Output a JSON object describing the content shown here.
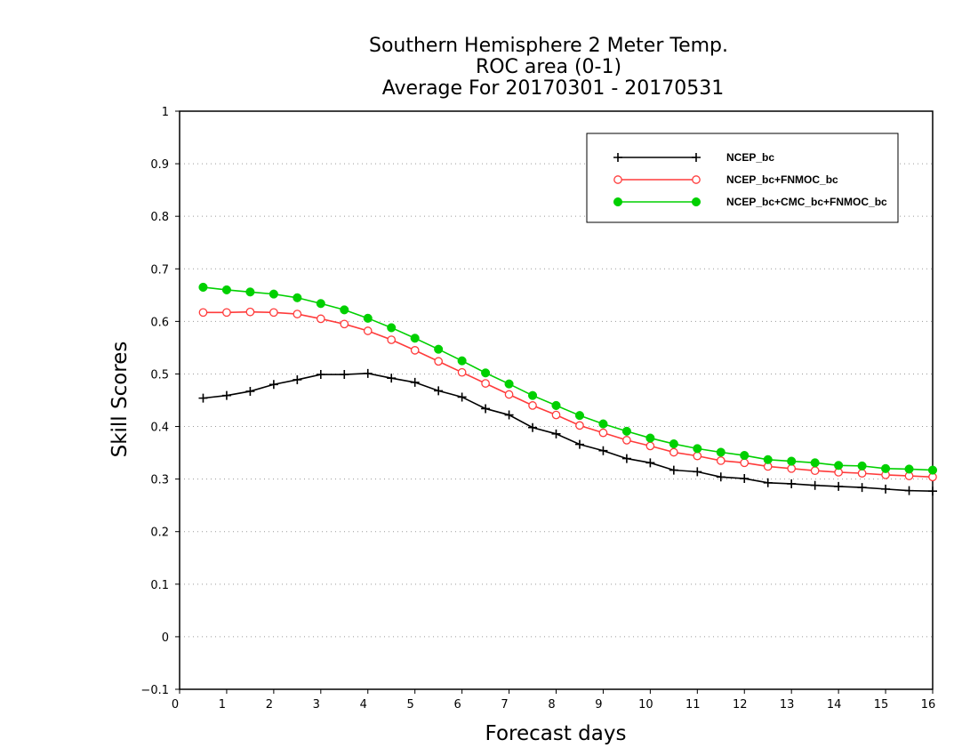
{
  "chart_data": {
    "type": "line",
    "title": [
      "Southern Hemisphere 2 Meter Temp.",
      "ROC area (0-1)",
      "Average For 20170301 - 20170531"
    ],
    "xlabel": "Forecast days",
    "ylabel": "Skill Scores",
    "xlim": [
      0,
      16
    ],
    "ylim": [
      -0.1,
      1
    ],
    "x_ticks": [
      "0",
      "1",
      "2",
      "3",
      "4",
      "5",
      "6",
      "7",
      "8",
      "9",
      "10",
      "11",
      "12",
      "13",
      "14",
      "15",
      "16"
    ],
    "y_ticks": [
      "−0.1",
      "0",
      "0.1",
      "0.2",
      "0.3",
      "0.4",
      "0.5",
      "0.6",
      "0.7",
      "0.8",
      "0.9",
      "1"
    ],
    "grid": "horizontal-dotted",
    "legend_position": "top-right",
    "x": [
      0.5,
      1,
      1.5,
      2,
      2.5,
      3,
      3.5,
      4,
      4.5,
      5,
      5.5,
      6,
      6.5,
      7,
      7.5,
      8,
      8.5,
      9,
      9.5,
      10,
      10.5,
      11,
      11.5,
      12,
      12.5,
      13,
      13.5,
      14,
      14.5,
      15,
      15.5,
      16
    ],
    "series": [
      {
        "name": "NCEP_bc",
        "color": "#000000",
        "marker": "plus",
        "values": [
          0.454,
          0.459,
          0.467,
          0.48,
          0.489,
          0.499,
          0.499,
          0.501,
          0.492,
          0.484,
          0.468,
          0.456,
          0.434,
          0.422,
          0.398,
          0.386,
          0.366,
          0.354,
          0.339,
          0.331,
          0.317,
          0.314,
          0.304,
          0.301,
          0.293,
          0.291,
          0.288,
          0.286,
          0.284,
          0.281,
          0.278,
          0.277
        ]
      },
      {
        "name": "NCEP_bc+FNMOC_bc",
        "color": "#ff3b3b",
        "marker": "open-circle",
        "values": [
          0.617,
          0.617,
          0.618,
          0.617,
          0.614,
          0.605,
          0.595,
          0.582,
          0.565,
          0.545,
          0.524,
          0.503,
          0.482,
          0.461,
          0.44,
          0.422,
          0.402,
          0.388,
          0.374,
          0.363,
          0.351,
          0.344,
          0.335,
          0.331,
          0.324,
          0.32,
          0.316,
          0.313,
          0.311,
          0.308,
          0.306,
          0.304
        ]
      },
      {
        "name": "NCEP_bc+CMC_bc+FNMOC_bc",
        "color": "#00d000",
        "marker": "filled-circle",
        "values": [
          0.665,
          0.66,
          0.656,
          0.652,
          0.645,
          0.634,
          0.622,
          0.606,
          0.588,
          0.568,
          0.547,
          0.525,
          0.502,
          0.481,
          0.459,
          0.44,
          0.421,
          0.405,
          0.391,
          0.378,
          0.367,
          0.358,
          0.351,
          0.345,
          0.337,
          0.334,
          0.331,
          0.326,
          0.325,
          0.32,
          0.319,
          0.317
        ]
      }
    ]
  }
}
